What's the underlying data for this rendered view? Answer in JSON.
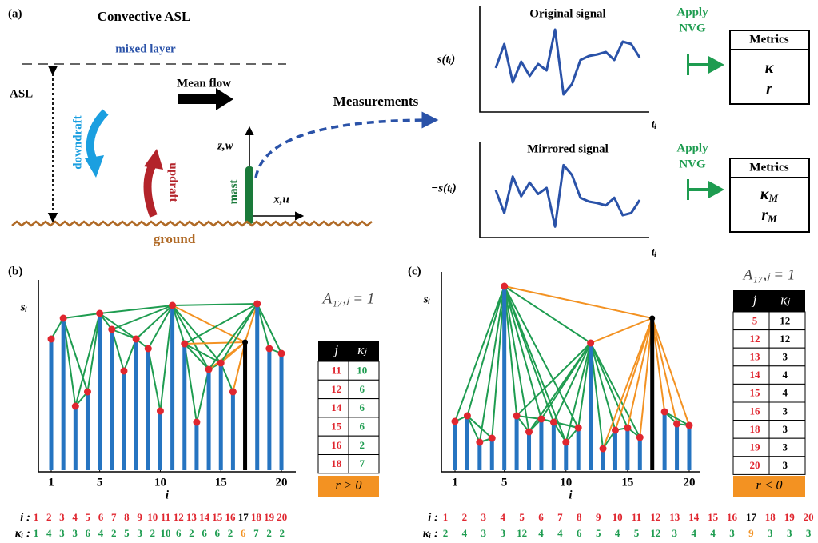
{
  "panel_a": {
    "label": "(a)",
    "title": "Convective ASL",
    "mixed_layer": "mixed layer",
    "asl": "ASL",
    "mean_flow": "Mean flow",
    "downdraft": "downdraft",
    "updraft": "updraft",
    "mast": "mast",
    "z_axis": "z,w",
    "x_axis": "x,u",
    "ground": "ground",
    "measurements": "Measurements",
    "original_signal": {
      "title": "Original signal",
      "y_label": "s(tᵢ)",
      "x_label": "tᵢ",
      "values": [
        4.5,
        7.5,
        2.7,
        5.3,
        3.5,
        5,
        4.2,
        9.3,
        1.2,
        2.5,
        5.5,
        6,
        6.2,
        6.5,
        5.5,
        7.8,
        7.5,
        5.8
      ]
    },
    "mirrored_signal": {
      "title": "Mirrored signal",
      "y_label": "−s(tᵢ)",
      "x_label": "tᵢ",
      "values": [
        -4.5,
        -7.5,
        -2.7,
        -5.3,
        -3.5,
        -5,
        -4.2,
        -9.3,
        -1.2,
        -2.5,
        -5.5,
        -6,
        -6.2,
        -6.5,
        -5.5,
        -7.8,
        -7.5,
        -5.8
      ]
    },
    "apply": [
      "Apply",
      "NVG"
    ],
    "metrics": {
      "title": "Metrics",
      "items": [
        {
          "symbol": "κ",
          "sub": ""
        },
        {
          "symbol": "r",
          "sub": ""
        }
      ]
    },
    "mirrored_metrics": {
      "title": "Metrics",
      "items": [
        {
          "symbol": "κ",
          "sub": "M"
        },
        {
          "symbol": "r",
          "sub": "M"
        }
      ]
    }
  },
  "panel_b": {
    "label": "(b)",
    "y_label": "sᵢ",
    "x_label": "i",
    "xticks": [
      1,
      5,
      10,
      15,
      20
    ],
    "indices": [
      1,
      2,
      3,
      4,
      5,
      6,
      7,
      8,
      9,
      10,
      11,
      12,
      13,
      14,
      15,
      16,
      17,
      18,
      19,
      20
    ],
    "values": [
      8.2,
      9.5,
      4,
      4.9,
      9.8,
      8.8,
      6.2,
      8.2,
      7.6,
      3.7,
      10.3,
      7.9,
      3,
      6.3,
      6.7,
      4.9,
      8,
      10.4,
      7.6,
      7.3
    ],
    "focus": 17,
    "table": {
      "title": "A₁₇,ⱼ = 1",
      "columns": [
        "j",
        "κⱼ"
      ],
      "rows": [
        [
          11,
          10
        ],
        [
          12,
          6
        ],
        [
          14,
          6
        ],
        [
          15,
          6
        ],
        [
          16,
          2
        ],
        [
          18,
          7
        ]
      ]
    },
    "result": "r > 0",
    "index_label": "i :",
    "degree_label": "κᵢ :",
    "degrees": [
      1,
      4,
      3,
      3,
      6,
      4,
      2,
      5,
      3,
      2,
      10,
      6,
      2,
      6,
      6,
      2,
      6,
      7,
      2,
      2
    ]
  },
  "panel_c": {
    "label": "(c)",
    "y_label": "sᵢ",
    "x_label": "i",
    "xticks": [
      1,
      5,
      10,
      15,
      20
    ],
    "indices": [
      1,
      2,
      3,
      4,
      5,
      6,
      7,
      8,
      9,
      10,
      11,
      12,
      13,
      14,
      15,
      16,
      17,
      18,
      19,
      20
    ],
    "values": [
      3.05,
      3.4,
      1.75,
      2,
      11.5,
      3.4,
      2.4,
      3.2,
      3,
      1.75,
      2.65,
      7.95,
      1.35,
      2.5,
      2.65,
      2.05,
      9.5,
      3.65,
      2.9,
      2.8
    ],
    "focus": 17,
    "table": {
      "title": "A₁₇,ⱼ = 1",
      "columns": [
        "j",
        "κⱼ"
      ],
      "rows": [
        [
          5,
          12
        ],
        [
          12,
          12
        ],
        [
          13,
          3
        ],
        [
          14,
          4
        ],
        [
          15,
          4
        ],
        [
          16,
          3
        ],
        [
          18,
          3
        ],
        [
          19,
          3
        ],
        [
          20,
          3
        ]
      ]
    },
    "result": "r < 0",
    "index_label": "i :",
    "degree_label": "κᵢ :",
    "degrees": [
      2,
      4,
      3,
      3,
      12,
      4,
      4,
      6,
      5,
      4,
      5,
      12,
      3,
      4,
      4,
      3,
      9,
      3,
      3,
      3
    ]
  }
}
